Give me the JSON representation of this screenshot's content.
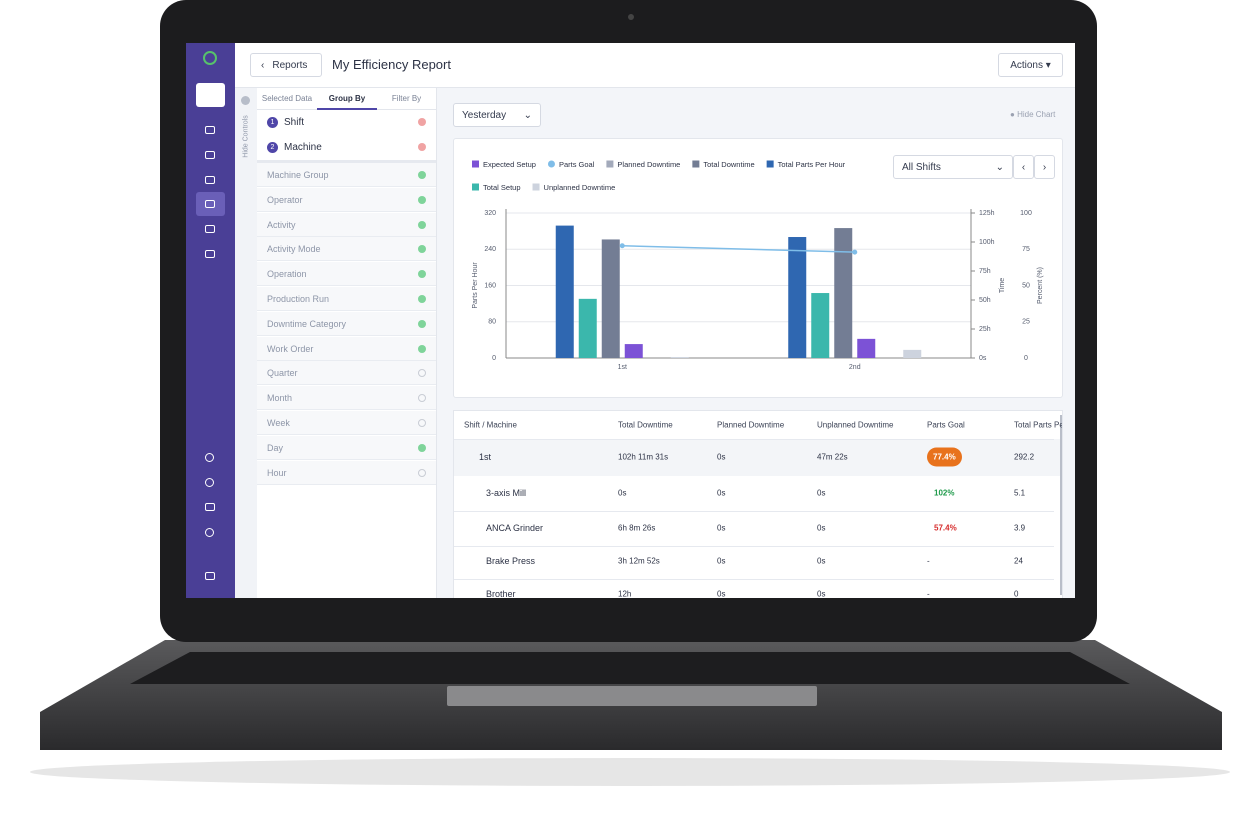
{
  "header": {
    "back": "Reports",
    "title": "My Efficiency Report",
    "actions": "Actions"
  },
  "controls": {
    "toggle": "Hide Controls",
    "tabs": [
      "Selected Data",
      "Group By",
      "Filter By"
    ],
    "selected": [
      {
        "number": "1",
        "label": "Shift"
      },
      {
        "number": "2",
        "label": "Machine"
      }
    ],
    "options": [
      "Machine Group",
      "Operator",
      "Activity",
      "Activity Mode",
      "Operation",
      "Production Run",
      "Downtime Category",
      "Work Order",
      "Quarter",
      "Month",
      "Week",
      "Day",
      "Hour"
    ]
  },
  "filters": {
    "period": "Yesterday",
    "hide_chart": "Hide Chart",
    "shifts": "All Shifts"
  },
  "chart_data": {
    "type": "bar",
    "categories": [
      "1st",
      "2nd"
    ],
    "ylabel": "Parts Per Hour",
    "y2label": "Time",
    "y3label": "Percent (%)",
    "ylim": [
      0,
      320
    ],
    "yticks": [
      0,
      80,
      160,
      240,
      320
    ],
    "y2lim": [
      0,
      125
    ],
    "y2ticks": [
      {
        "value": 0,
        "label": "0s"
      },
      {
        "value": 25,
        "label": "25h"
      },
      {
        "value": 50,
        "label": "50h"
      },
      {
        "value": 75,
        "label": "75h"
      },
      {
        "value": 100,
        "label": "100h"
      },
      {
        "value": 125,
        "label": "125h"
      }
    ],
    "y3lim": [
      0,
      100
    ],
    "y3ticks": [
      0,
      25,
      50,
      75,
      100
    ],
    "grid": true,
    "series": [
      {
        "name": "Total Parts Per Hour",
        "color": "#2f67b1",
        "values": [
          292.2,
          267
        ]
      },
      {
        "name": "Total Setup",
        "color": "#3bb7ac",
        "axis": "y2",
        "values": [
          51,
          56
        ]
      },
      {
        "name": "Total Downtime",
        "color": "#737d94",
        "axis": "y2",
        "values": [
          102.2,
          112
        ]
      },
      {
        "name": "Expected Setup",
        "color": "#7c52d6",
        "axis": "y2",
        "values": [
          12,
          16.5
        ]
      },
      {
        "name": "Planned Downtime",
        "color": "#a3aabb",
        "axis": "y2",
        "values": [
          0,
          0
        ]
      },
      {
        "name": "Unplanned Downtime",
        "color": "#cdd3de",
        "axis": "y2",
        "values": [
          0.8,
          7
        ]
      },
      {
        "name": "Parts Goal",
        "color": "#7fbde8",
        "type": "line",
        "axis": "y3",
        "values": [
          77.4,
          73
        ]
      }
    ]
  },
  "table": {
    "columns": [
      "Shift / Machine",
      "Total Downtime",
      "Planned Downtime",
      "Unplanned Downtime",
      "Parts Goal",
      "Total Parts Per Hour"
    ],
    "rows": [
      [
        "1st",
        "102h 11m 31s",
        "0s",
        "47m 22s",
        "77.4%",
        "292.2"
      ],
      [
        "3-axis Mill",
        "0s",
        "0s",
        "0s",
        "102%",
        "5.1"
      ],
      [
        "ANCA Grinder",
        "6h 8m 26s",
        "0s",
        "0s",
        "57.4%",
        "3.9"
      ],
      [
        "Brake Press",
        "3h 12m 52s",
        "0s",
        "0s",
        "-",
        "24"
      ],
      [
        "Brother",
        "12h",
        "0s",
        "0s",
        "-",
        "0"
      ]
    ]
  }
}
